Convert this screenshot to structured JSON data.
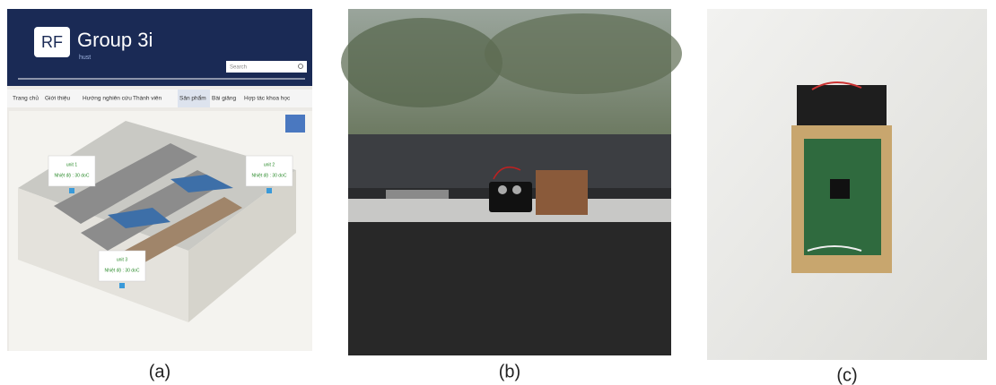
{
  "panels": [
    {
      "caption": "(a)",
      "website": {
        "logo": "RF",
        "brand": "Group 3i",
        "sub": "hust",
        "search": "Search",
        "nav": [
          "Trang chủ",
          "Giới thiệu",
          "Hướng nghiên cứu",
          "Thành viên",
          "Sản phẩm",
          "Bài giảng",
          "Hợp tác khoa học"
        ],
        "units": [
          {
            "name": "unit 1",
            "reading": "Nhiệt độ : 30 doC"
          },
          {
            "name": "unit 2",
            "reading": "Nhiệt độ : 30 doC"
          },
          {
            "name": "unit 3",
            "reading": "Nhiệt độ : 30 doC"
          }
        ]
      }
    },
    {
      "caption": "(b)"
    },
    {
      "caption": "(c)"
    }
  ]
}
